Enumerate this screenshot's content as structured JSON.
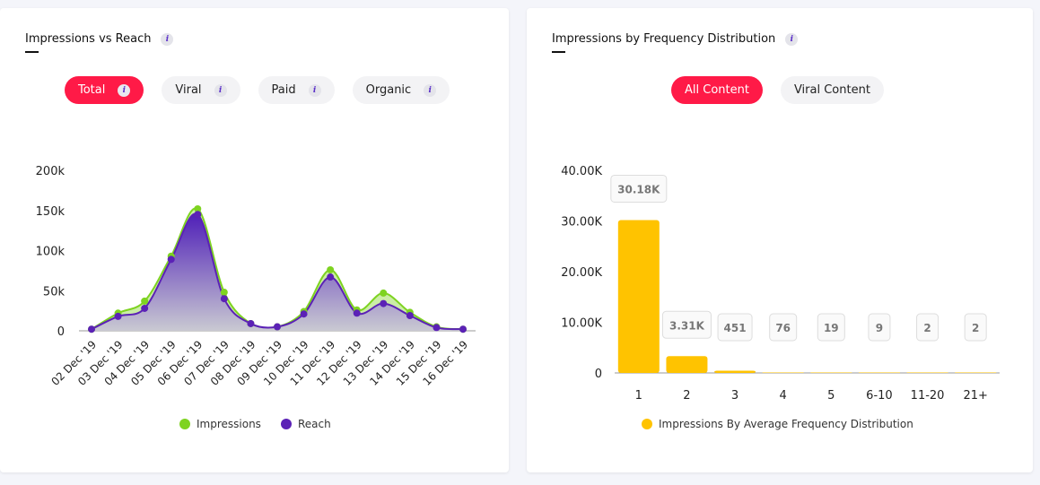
{
  "left_card": {
    "title": "Impressions vs Reach",
    "tabs": [
      {
        "label": "Total",
        "active": true
      },
      {
        "label": "Viral",
        "active": false
      },
      {
        "label": "Paid",
        "active": false
      },
      {
        "label": "Organic",
        "active": false
      }
    ]
  },
  "right_card": {
    "title": "Impressions by Frequency Distribution",
    "tabs": [
      {
        "label": "All Content",
        "active": true
      },
      {
        "label": "Viral Content",
        "active": false
      }
    ]
  },
  "info_glyph": "i",
  "chart_data": [
    {
      "type": "area",
      "categories": [
        "02 Dec '19",
        "03 Dec '19",
        "04 Dec '19",
        "05 Dec '19",
        "06 Dec '19",
        "07 Dec '19",
        "08 Dec '19",
        "09 Dec '19",
        "10 Dec '19",
        "11 Dec '19",
        "12 Dec '19",
        "13 Dec '19",
        "14 Dec '19",
        "15 Dec '19",
        "16 Dec '19"
      ],
      "yticks": [
        "0",
        "50k",
        "100k",
        "150k",
        "200k"
      ],
      "ylim": [
        0,
        200000
      ],
      "series": [
        {
          "name": "Impressions",
          "color": "#7ed321",
          "values": [
            2000,
            22000,
            37000,
            93000,
            152000,
            48000,
            9000,
            5000,
            24000,
            76000,
            26000,
            47000,
            23000,
            5000,
            2000
          ]
        },
        {
          "name": "Reach",
          "color": "#5b21b6",
          "values": [
            2000,
            18000,
            28000,
            89000,
            145000,
            40000,
            9000,
            5000,
            21000,
            67000,
            22000,
            34000,
            19000,
            4000,
            2000
          ]
        }
      ],
      "legend": "bottom"
    },
    {
      "type": "bar",
      "categories": [
        "1",
        "2",
        "3",
        "4",
        "5",
        "6-10",
        "11-20",
        "21+"
      ],
      "values": [
        30180,
        3310,
        451,
        76,
        19,
        9,
        2,
        2
      ],
      "data_labels": [
        "30.18K",
        "3.31K",
        "451",
        "76",
        "19",
        "9",
        "2",
        "2"
      ],
      "yticks": [
        "0",
        "10.00K",
        "20.00K",
        "30.00K",
        "40.00K"
      ],
      "ylim": [
        0,
        40000
      ],
      "series_name": "Impressions By Average Frequency Distribution",
      "color": "#ffc300",
      "legend": "bottom"
    }
  ]
}
